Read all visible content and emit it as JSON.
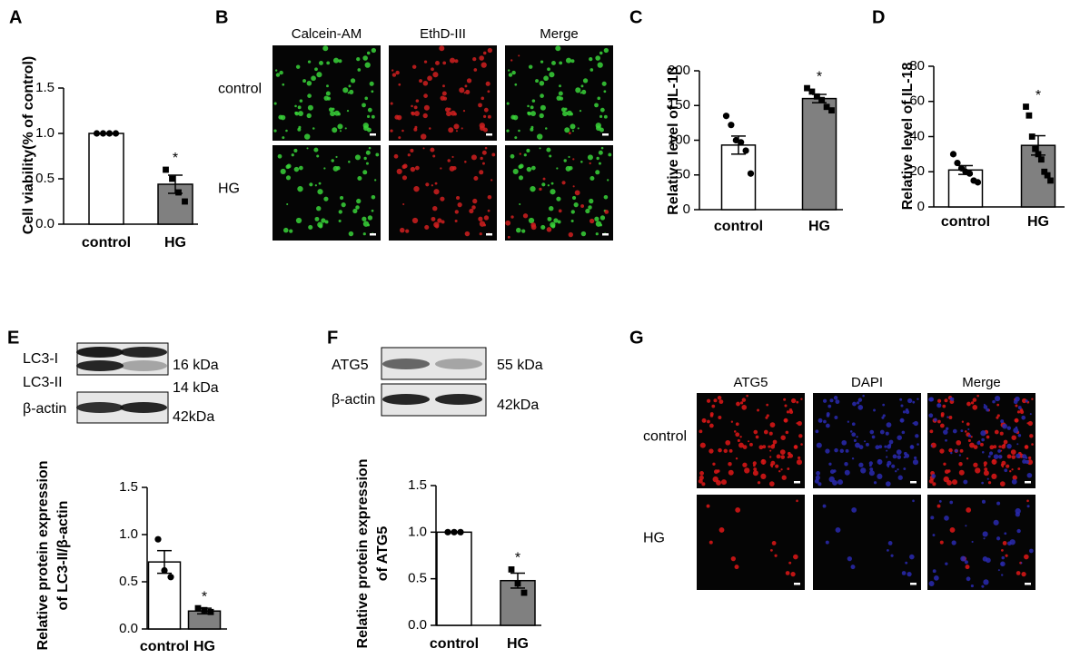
{
  "chart_data": [
    {
      "type": "bar",
      "panel": "A",
      "ylabel": [
        "Cell viability(% of control)"
      ],
      "categories": [
        "control",
        "HG"
      ],
      "values": [
        1.0,
        0.44
      ],
      "errors": [
        0,
        0.1
      ],
      "points": [
        [
          1,
          1,
          1,
          1
        ],
        [
          0.6,
          0.5,
          0.35,
          0.25
        ]
      ],
      "colors": [
        "#ffffff",
        "#808080"
      ],
      "ylim": [
        0,
        1.5
      ],
      "yticks": [
        {
          "value": 0,
          "label": "0.0"
        },
        0.5,
        {
          "value": 1,
          "label": "1.0"
        },
        1.5
      ],
      "significance": "*"
    },
    {
      "type": "bar",
      "panel": "C",
      "ylabel": [
        "Relative level of IL-1β"
      ],
      "categories": [
        "control",
        "HG"
      ],
      "values": [
        93,
        160
      ],
      "errors": [
        13,
        6
      ],
      "points": [
        [
          135,
          122,
          100,
          97,
          85,
          52
        ],
        [
          175,
          170,
          163,
          158,
          148,
          143
        ]
      ],
      "colors": [
        "#ffffff",
        "#808080"
      ],
      "ylim": [
        0,
        200
      ],
      "yticks": [
        0,
        50,
        100,
        150,
        200
      ],
      "significance": "*"
    },
    {
      "type": "bar",
      "panel": "D",
      "ylabel": [
        "Relative level of IL-18"
      ],
      "categories": [
        "control",
        "HG"
      ],
      "values": [
        21,
        35
      ],
      "errors": [
        2.5,
        5.5
      ],
      "points": [
        [
          30,
          25,
          22,
          20,
          19,
          15,
          14
        ],
        [
          57,
          52,
          40,
          33,
          30,
          27,
          20,
          18,
          15
        ]
      ],
      "colors": [
        "#ffffff",
        "#808080"
      ],
      "ylim": [
        0,
        80
      ],
      "yticks": [
        0,
        20,
        40,
        60,
        80
      ],
      "significance": "*"
    },
    {
      "type": "bar",
      "panel": "E",
      "ylabel": [
        "Relative protein expression",
        "of LC3-II/β-actin"
      ],
      "categories": [
        "control",
        "HG"
      ],
      "values": [
        0.71,
        0.19
      ],
      "errors": [
        0.12,
        0.03
      ],
      "points": [
        [
          0.95,
          0.62,
          0.55
        ],
        [
          0.22,
          0.2,
          0.18
        ]
      ],
      "colors": [
        "#ffffff",
        "#808080"
      ],
      "ylim": [
        0,
        1.5
      ],
      "yticks": [
        {
          "value": 0,
          "label": "0.0"
        },
        0.5,
        {
          "value": 1,
          "label": "1.0"
        },
        1.5
      ],
      "significance": "*"
    },
    {
      "type": "bar",
      "panel": "F",
      "ylabel": [
        "Relative protein expression",
        "of ATG5"
      ],
      "categories": [
        "control",
        "HG"
      ],
      "values": [
        1.0,
        0.48
      ],
      "errors": [
        0,
        0.08
      ],
      "points": [
        [
          1,
          1,
          1
        ],
        [
          0.6,
          0.45,
          0.35
        ]
      ],
      "colors": [
        "#ffffff",
        "#808080"
      ],
      "ylim": [
        0,
        1.5
      ],
      "yticks": [
        {
          "value": 0,
          "label": "0.0"
        },
        0.5,
        {
          "value": 1,
          "label": "1.0"
        },
        1.5
      ],
      "significance": "*"
    }
  ],
  "micrographs": [
    {
      "panel": "B",
      "columns": [
        "Calcein-AM",
        "EthD-III",
        "Merge"
      ],
      "rows": [
        "control",
        "HG"
      ]
    },
    {
      "panel": "G",
      "columns": [
        "ATG5",
        "DAPI",
        "Merge"
      ],
      "rows": [
        "control",
        "HG"
      ]
    }
  ],
  "blots": [
    {
      "panel": "E",
      "bands": [
        {
          "label": "LC3-I",
          "size": "16 kDa"
        },
        {
          "label": "LC3-II",
          "size": "14 kDa"
        },
        {
          "label": "β-actin",
          "size": "42kDa"
        }
      ]
    },
    {
      "panel": "F",
      "bands": [
        {
          "label": "ATG5",
          "size": "55 kDa"
        },
        {
          "label": "β-actin",
          "size": "42kDa"
        }
      ]
    }
  ]
}
